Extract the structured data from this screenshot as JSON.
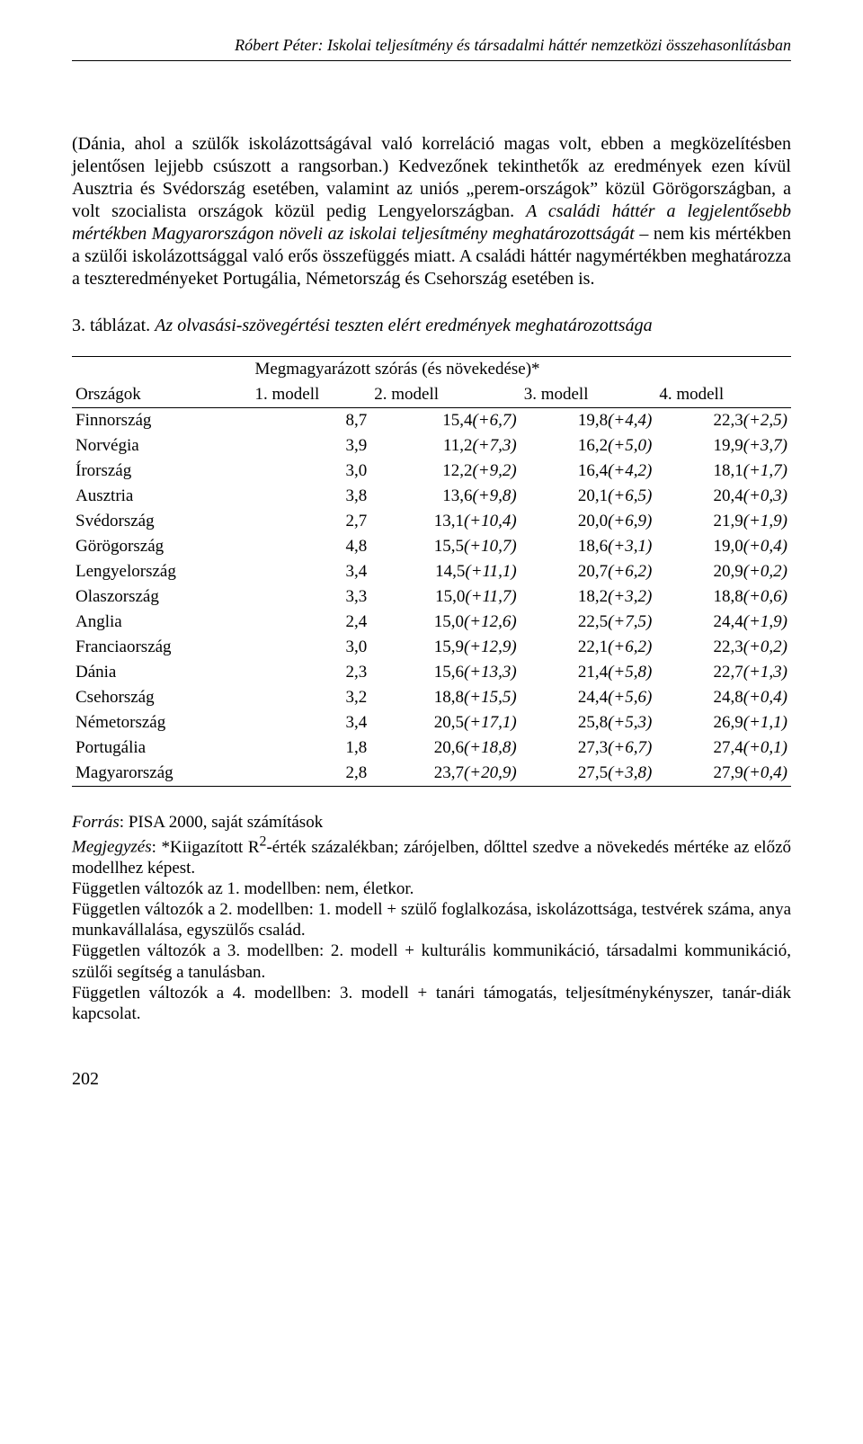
{
  "running_head": "Róbert Péter: Iskolai teljesítmény és társadalmi háttér nemzetközi összehasonlításban",
  "paragraph_html": "(Dánia, ahol a szülők iskolázottságával való korreláció magas volt, ebben a megközelítésben jelentősen lejjebb csúszott a rangsorban.) Kedvezőnek tekinthetők az eredmények ezen kívül Ausztria és Svédország esetében, valamint az uniós „perem-országok” közül Görögországban, a volt szocialista országok közül pedig Lengyelországban. <i>A családi háttér a legjelentősebb mértékben Magyarországon növeli az iskolai teljesítmény meghatározottságát</i> – nem kis mértékben a szülői iskolázottsággal való erős összefüggés miatt. A családi háttér nagymértékben meghatározza a teszteredményeket Portugália, Németország és Csehország esetében is.",
  "table": {
    "caption_num": "3. táblázat.",
    "caption_title": "Az olvasási-szövegértési teszten elért eredmények meghatározottsága",
    "spanner": "Megmagyarázott szórás (és növekedése)*",
    "col_country": "Országok",
    "cols": [
      "1. modell",
      "2. modell",
      "3. modell",
      "4. modell"
    ],
    "rows": [
      {
        "c": "Finnország",
        "m1": "8,7",
        "m2": "15,4",
        "d2": "(+6,7)",
        "m3": "19,8",
        "d3": "(+4,4)",
        "m4": "22,3",
        "d4": "(+2,5)"
      },
      {
        "c": "Norvégia",
        "m1": "3,9",
        "m2": "11,2",
        "d2": "(+7,3)",
        "m3": "16,2",
        "d3": "(+5,0)",
        "m4": "19,9",
        "d4": "(+3,7)"
      },
      {
        "c": "Írország",
        "m1": "3,0",
        "m2": "12,2",
        "d2": "(+9,2)",
        "m3": "16,4",
        "d3": "(+4,2)",
        "m4": "18,1",
        "d4": "(+1,7)"
      },
      {
        "c": "Ausztria",
        "m1": "3,8",
        "m2": "13,6",
        "d2": "(+9,8)",
        "m3": "20,1",
        "d3": "(+6,5)",
        "m4": "20,4",
        "d4": "(+0,3)"
      },
      {
        "c": "Svédország",
        "m1": "2,7",
        "m2": "13,1",
        "d2": "(+10,4)",
        "m3": "20,0",
        "d3": "(+6,9)",
        "m4": "21,9",
        "d4": "(+1,9)"
      },
      {
        "c": "Görögország",
        "m1": "4,8",
        "m2": "15,5",
        "d2": "(+10,7)",
        "m3": "18,6",
        "d3": "(+3,1)",
        "m4": "19,0",
        "d4": "(+0,4)"
      },
      {
        "c": "Lengyelország",
        "m1": "3,4",
        "m2": "14,5",
        "d2": "(+11,1)",
        "m3": "20,7",
        "d3": "(+6,2)",
        "m4": "20,9",
        "d4": "(+0,2)"
      },
      {
        "c": "Olaszország",
        "m1": "3,3",
        "m2": "15,0",
        "d2": "(+11,7)",
        "m3": "18,2",
        "d3": "(+3,2)",
        "m4": "18,8",
        "d4": "(+0,6)"
      },
      {
        "c": "Anglia",
        "m1": "2,4",
        "m2": "15,0",
        "d2": "(+12,6)",
        "m3": "22,5",
        "d3": "(+7,5)",
        "m4": "24,4",
        "d4": "(+1,9)"
      },
      {
        "c": "Franciaország",
        "m1": "3,0",
        "m2": "15,9",
        "d2": "(+12,9)",
        "m3": "22,1",
        "d3": "(+6,2)",
        "m4": "22,3",
        "d4": "(+0,2)"
      },
      {
        "c": "Dánia",
        "m1": "2,3",
        "m2": "15,6",
        "d2": "(+13,3)",
        "m3": "21,4",
        "d3": "(+5,8)",
        "m4": "22,7",
        "d4": "(+1,3)"
      },
      {
        "c": "Csehország",
        "m1": "3,2",
        "m2": "18,8",
        "d2": "(+15,5)",
        "m3": "24,4",
        "d3": "(+5,6)",
        "m4": "24,8",
        "d4": "(+0,4)"
      },
      {
        "c": "Németország",
        "m1": "3,4",
        "m2": "20,5",
        "d2": "(+17,1)",
        "m3": "25,8",
        "d3": "(+5,3)",
        "m4": "26,9",
        "d4": "(+1,1)"
      },
      {
        "c": "Portugália",
        "m1": "1,8",
        "m2": "20,6",
        "d2": "(+18,8)",
        "m3": "27,3",
        "d3": "(+6,7)",
        "m4": "27,4",
        "d4": "(+0,1)"
      },
      {
        "c": "Magyarország",
        "m1": "2,8",
        "m2": "23,7",
        "d2": "(+20,9)",
        "m3": "27,5",
        "d3": "(+3,8)",
        "m4": "27,9",
        "d4": "(+0,4)"
      }
    ]
  },
  "notes": {
    "source_label": "Forrás",
    "source_text": ": PISA 2000, saját számítások",
    "note_label": "Megjegyzés",
    "note_text_html": ": *Kiigazított R<sup>2</sup>-érték százalékban; zárójelben, dőlttel szedve a növekedés mértéke az előző modellhez képest.",
    "l1": "Független változók az 1. modellben: nem, életkor.",
    "l2": "Független változók a 2. modellben: 1. modell + szülő foglalkozása, iskolázottsága, testvérek száma, anya munkavállalása, egyszülős család.",
    "l3": "Független változók a 3. modellben: 2. modell + kulturális kommunikáció, társadalmi kommunikáció, szülői segítség a tanulásban.",
    "l4": "Független változók a 4. modellben: 3. modell + tanári támogatás, teljesítménykényszer, tanár-diák kapcsolat."
  },
  "page_number": "202"
}
